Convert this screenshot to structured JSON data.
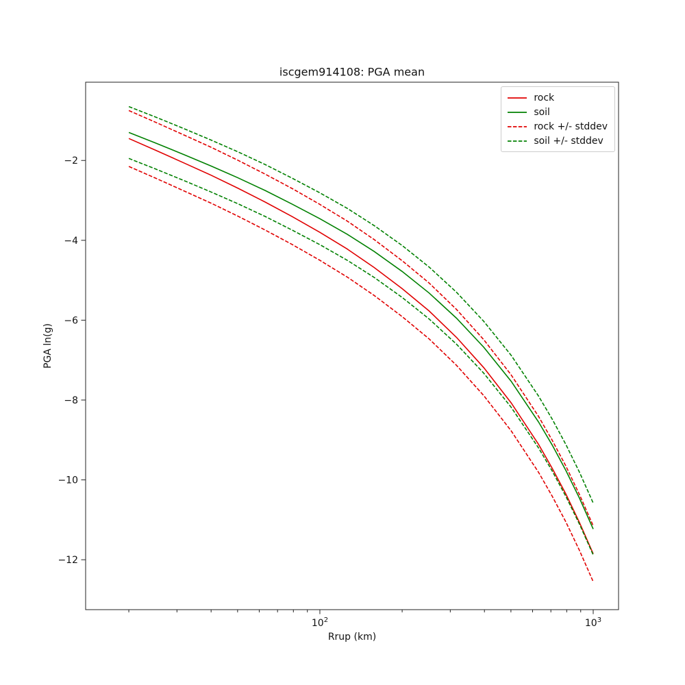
{
  "figure": {
    "title": "iscgem914108: PGA mean",
    "xlabel": "Rrup (km)",
    "ylabel": "PGA ln(g)"
  },
  "colors": {
    "rock": "#e00000",
    "soil": "#008000",
    "axis": "#222222",
    "background": "#ffffff",
    "legend_border": "#cccccc"
  },
  "chart_data": {
    "type": "line",
    "title": "iscgem914108: PGA mean",
    "xlabel": "Rrup (km)",
    "ylabel": "PGA ln(g)",
    "xscale": "log",
    "yscale": "linear",
    "grid": false,
    "xlim": [
      13.9,
      1238
    ],
    "ylim": [
      -13.25,
      -0.04
    ],
    "yticks": [
      -2,
      -4,
      -6,
      -8,
      -10,
      -12
    ],
    "xticks_major": [
      {
        "value": 100,
        "label_base": "10",
        "label_exp": "2"
      },
      {
        "value": 1000,
        "label_base": "10",
        "label_exp": "3"
      }
    ],
    "xticks_minor": [
      20,
      30,
      40,
      50,
      60,
      70,
      80,
      90,
      200,
      300,
      400,
      500,
      600,
      700,
      800,
      900
    ],
    "x": [
      20,
      25,
      32,
      40,
      50,
      63,
      79,
      100,
      126,
      158,
      200,
      251,
      316,
      398,
      501,
      631,
      708,
      794,
      891,
      1000
    ],
    "series": [
      {
        "name": "rock",
        "label": "rock",
        "color": "#e00000",
        "style": "solid",
        "values": [
          -1.45,
          -1.74,
          -2.07,
          -2.37,
          -2.69,
          -3.04,
          -3.4,
          -3.8,
          -4.22,
          -4.68,
          -5.21,
          -5.77,
          -6.43,
          -7.19,
          -8.07,
          -9.11,
          -9.71,
          -10.35,
          -11.07,
          -11.85
        ]
      },
      {
        "name": "soil",
        "label": "soil",
        "color": "#008000",
        "style": "solid",
        "values": [
          -1.3,
          -1.56,
          -1.86,
          -2.14,
          -2.43,
          -2.75,
          -3.09,
          -3.46,
          -3.85,
          -4.28,
          -4.78,
          -5.32,
          -5.95,
          -6.68,
          -7.53,
          -8.55,
          -9.13,
          -9.76,
          -10.46,
          -11.23
        ]
      },
      {
        "name": "rock_plus_stddev",
        "label": "rock + stddev",
        "color": "#e00000",
        "style": "dashed",
        "values": [
          -0.75,
          -1.04,
          -1.37,
          -1.67,
          -1.99,
          -2.34,
          -2.7,
          -3.1,
          -3.52,
          -3.98,
          -4.51,
          -5.07,
          -5.73,
          -6.49,
          -7.37,
          -8.41,
          -9.01,
          -9.65,
          -10.37,
          -11.15
        ]
      },
      {
        "name": "rock_minus_stddev",
        "label": "rock - stddev",
        "color": "#e00000",
        "style": "dashed",
        "values": [
          -2.15,
          -2.44,
          -2.77,
          -3.07,
          -3.39,
          -3.74,
          -4.1,
          -4.5,
          -4.92,
          -5.38,
          -5.91,
          -6.47,
          -7.13,
          -7.89,
          -8.77,
          -9.81,
          -10.41,
          -11.05,
          -11.77,
          -12.55
        ]
      },
      {
        "name": "soil_plus_stddev",
        "label": "soil + stddev",
        "color": "#008000",
        "style": "dashed",
        "values": [
          -0.65,
          -0.91,
          -1.21,
          -1.49,
          -1.78,
          -2.1,
          -2.44,
          -2.81,
          -3.2,
          -3.63,
          -4.13,
          -4.67,
          -5.3,
          -6.03,
          -6.88,
          -7.9,
          -8.48,
          -9.11,
          -9.81,
          -10.58
        ]
      },
      {
        "name": "soil_minus_stddev",
        "label": "soil - stddev",
        "color": "#008000",
        "style": "dashed",
        "values": [
          -1.95,
          -2.21,
          -2.51,
          -2.79,
          -3.08,
          -3.4,
          -3.74,
          -4.11,
          -4.5,
          -4.93,
          -5.43,
          -5.97,
          -6.6,
          -7.33,
          -8.18,
          -9.2,
          -9.78,
          -10.41,
          -11.11,
          -11.88
        ]
      }
    ],
    "legend": {
      "position": "upper right",
      "entries": [
        {
          "label": "rock",
          "color": "#e00000",
          "style": "solid"
        },
        {
          "label": "soil",
          "color": "#008000",
          "style": "solid"
        },
        {
          "label": "rock +/- stddev",
          "color": "#e00000",
          "style": "dashed"
        },
        {
          "label": "soil +/- stddev",
          "color": "#008000",
          "style": "dashed"
        }
      ]
    }
  }
}
